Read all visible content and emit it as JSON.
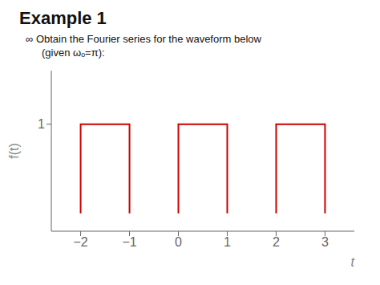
{
  "chart_data": {
    "type": "line",
    "title": "Example 1",
    "subtitle": [
      "∞ Obtain the Fourier series for the waveform below",
      "(given ωₒ=π):"
    ],
    "x_label": "t",
    "y_label": "f(t)",
    "x": [
      -2,
      -2,
      -1,
      -1,
      -1,
      0,
      0,
      1,
      1,
      1,
      2,
      2,
      3,
      3
    ],
    "values": [
      0,
      1,
      1,
      0,
      null,
      0,
      1,
      1,
      0,
      null,
      0,
      1,
      1,
      0
    ],
    "color": "#cc0000",
    "xlim": [
      -2.6,
      3.6
    ],
    "ylim": [
      -0.2,
      1.6
    ],
    "xticks": [
      {
        "value": -2,
        "label": "−2"
      },
      {
        "value": -1,
        "label": "−1"
      },
      0,
      1,
      2,
      3
    ],
    "yticks": [
      1
    ],
    "grid": false
  }
}
